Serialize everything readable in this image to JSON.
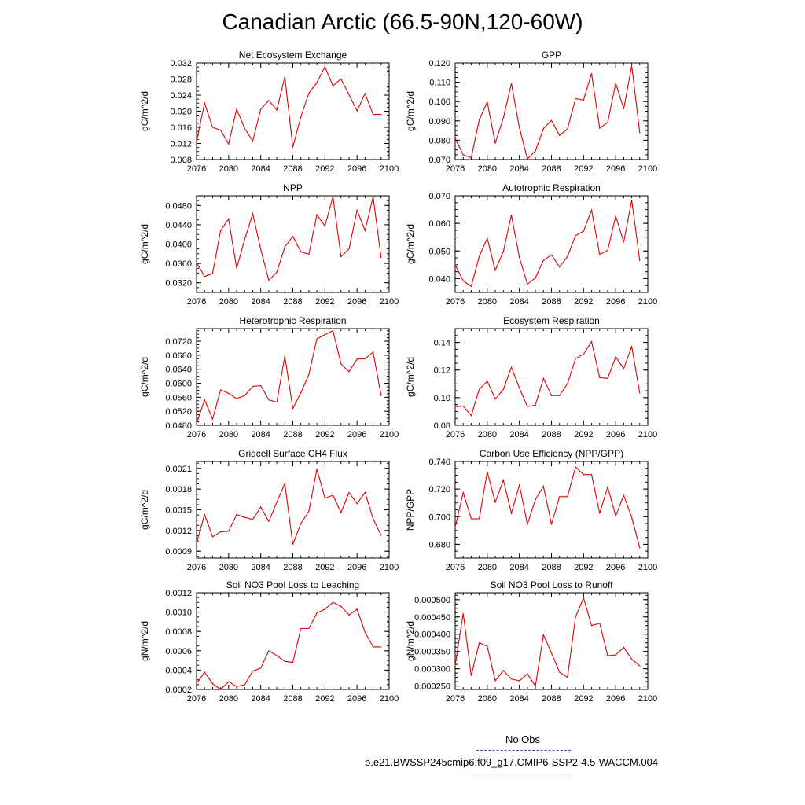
{
  "title": "Canadian Arctic (66.5-90N,120-60W)",
  "legend": {
    "obs_label": "No Obs",
    "run_label": "b.e21.BWSSP245cmip6.f09_g17.CMIP6-SSP2-4.5-WACCM.004",
    "run_color": "#e00000",
    "obs_color": "#4444cc"
  },
  "chart_data": [
    {
      "type": "line",
      "title": "Net Ecosystem Exchange",
      "ylabel": "gC/m^2/d",
      "xlim": [
        2076,
        2100
      ],
      "ylim": [
        0.008,
        0.032
      ],
      "x_ticks": [
        "2076",
        "2080",
        "2084",
        "2088",
        "2092",
        "2096",
        "2100"
      ],
      "y_ticks": [
        "0.008",
        "0.012",
        "0.016",
        "0.020",
        "0.024",
        "0.028",
        "0.032"
      ],
      "x": [
        2076,
        2077,
        2078,
        2079,
        2080,
        2081,
        2082,
        2083,
        2084,
        2085,
        2086,
        2087,
        2088,
        2089,
        2090,
        2091,
        2092,
        2093,
        2094,
        2095,
        2096,
        2097,
        2098,
        2099
      ],
      "values": [
        0.0125,
        0.022,
        0.016,
        0.0153,
        0.0119,
        0.0205,
        0.0157,
        0.0126,
        0.0205,
        0.0227,
        0.0203,
        0.0285,
        0.0111,
        0.0186,
        0.0245,
        0.0271,
        0.031,
        0.0263,
        0.028,
        0.0241,
        0.0201,
        0.0244,
        0.0192,
        0.0192
      ]
    },
    {
      "type": "line",
      "title": "GPP",
      "ylabel": "gC/m^2/d",
      "xlim": [
        2076,
        2100
      ],
      "ylim": [
        0.07,
        0.12
      ],
      "x_ticks": [
        "2076",
        "2080",
        "2084",
        "2088",
        "2092",
        "2096",
        "2100"
      ],
      "y_ticks": [
        "0.070",
        "0.080",
        "0.090",
        "0.100",
        "0.110",
        "0.120"
      ],
      "x": [
        2076,
        2077,
        2078,
        2079,
        2080,
        2081,
        2082,
        2083,
        2084,
        2085,
        2086,
        2087,
        2088,
        2089,
        2090,
        2091,
        2092,
        2093,
        2094,
        2095,
        2096,
        2097,
        2098,
        2099
      ],
      "values": [
        0.081,
        0.0725,
        0.071,
        0.0905,
        0.0998,
        0.0785,
        0.0915,
        0.1093,
        0.0865,
        0.0703,
        0.0745,
        0.086,
        0.0902,
        0.0825,
        0.0858,
        0.1015,
        0.1008,
        0.1145,
        0.0862,
        0.0892,
        0.1095,
        0.0962,
        0.1185,
        0.0838
      ]
    },
    {
      "type": "line",
      "title": "NPP",
      "ylabel": "gC/m^2/d",
      "xlim": [
        2076,
        2100
      ],
      "ylim": [
        0.03,
        0.05
      ],
      "x_ticks": [
        "2076",
        "2080",
        "2084",
        "2088",
        "2092",
        "2096",
        "2100"
      ],
      "y_ticks": [
        "0.0320",
        "0.0360",
        "0.0400",
        "0.0440",
        "0.0480"
      ],
      "x": [
        2076,
        2077,
        2078,
        2079,
        2080,
        2081,
        2082,
        2083,
        2084,
        2085,
        2086,
        2087,
        2088,
        2089,
        2090,
        2091,
        2092,
        2093,
        2094,
        2095,
        2096,
        2097,
        2098,
        2099
      ],
      "values": [
        0.0362,
        0.0333,
        0.0339,
        0.0428,
        0.0452,
        0.035,
        0.041,
        0.0463,
        0.0389,
        0.0325,
        0.0342,
        0.0394,
        0.0416,
        0.0384,
        0.0379,
        0.0461,
        0.0437,
        0.0498,
        0.0374,
        0.039,
        0.047,
        0.0428,
        0.0498,
        0.0372
      ]
    },
    {
      "type": "line",
      "title": "Autotrophic Respiration",
      "ylabel": "gC/m^2/d",
      "xlim": [
        2076,
        2100
      ],
      "ylim": [
        0.035,
        0.07
      ],
      "x_ticks": [
        "2076",
        "2080",
        "2084",
        "2088",
        "2092",
        "2096",
        "2100"
      ],
      "y_ticks": [
        "0.040",
        "0.050",
        "0.060",
        "0.070"
      ],
      "x": [
        2076,
        2077,
        2078,
        2079,
        2080,
        2081,
        2082,
        2083,
        2084,
        2085,
        2086,
        2087,
        2088,
        2089,
        2090,
        2091,
        2092,
        2093,
        2094,
        2095,
        2096,
        2097,
        2098,
        2099
      ],
      "values": [
        0.045,
        0.0392,
        0.0372,
        0.048,
        0.0546,
        0.043,
        0.0498,
        0.063,
        0.0477,
        0.038,
        0.0403,
        0.0466,
        0.0486,
        0.0442,
        0.048,
        0.0556,
        0.0572,
        0.0648,
        0.0488,
        0.0502,
        0.0626,
        0.0532,
        0.0684,
        0.0465
      ]
    },
    {
      "type": "line",
      "title": "Heterotrophic Respiration",
      "ylabel": "gC/m^2/d",
      "xlim": [
        2076,
        2100
      ],
      "ylim": [
        0.048,
        0.0756
      ],
      "x_ticks": [
        "2076",
        "2080",
        "2084",
        "2088",
        "2092",
        "2096",
        "2100"
      ],
      "y_ticks": [
        "0.0480",
        "0.0520",
        "0.0560",
        "0.0600",
        "0.0640",
        "0.0680",
        "0.0720"
      ],
      "x": [
        2076,
        2077,
        2078,
        2079,
        2080,
        2081,
        2082,
        2083,
        2084,
        2085,
        2086,
        2087,
        2088,
        2089,
        2090,
        2091,
        2092,
        2093,
        2094,
        2095,
        2096,
        2097,
        2098,
        2099
      ],
      "values": [
        0.0485,
        0.0553,
        0.0498,
        0.0581,
        0.0571,
        0.0556,
        0.0565,
        0.0591,
        0.0593,
        0.0553,
        0.0546,
        0.0678,
        0.0528,
        0.0573,
        0.0625,
        0.0727,
        0.0739,
        0.075,
        0.0655,
        0.0633,
        0.0669,
        0.067,
        0.0689,
        0.0565
      ]
    },
    {
      "type": "line",
      "title": "Ecosystem Respiration",
      "ylabel": "gC/m^2/d",
      "xlim": [
        2076,
        2100
      ],
      "ylim": [
        0.08,
        0.15
      ],
      "x_ticks": [
        "2076",
        "2080",
        "2084",
        "2088",
        "2092",
        "2096",
        "2100"
      ],
      "y_ticks": [
        "0.08",
        "0.10",
        "0.12",
        "0.14"
      ],
      "x": [
        2076,
        2077,
        2078,
        2079,
        2080,
        2081,
        2082,
        2083,
        2084,
        2085,
        2086,
        2087,
        2088,
        2089,
        2090,
        2091,
        2092,
        2093,
        2094,
        2095,
        2096,
        2097,
        2098,
        2099
      ],
      "values": [
        0.0935,
        0.094,
        0.087,
        0.106,
        0.112,
        0.099,
        0.106,
        0.122,
        0.107,
        0.0935,
        0.0946,
        0.114,
        0.1015,
        0.1015,
        0.1102,
        0.1283,
        0.1315,
        0.1405,
        0.1145,
        0.114,
        0.1295,
        0.121,
        0.137,
        0.1033
      ]
    },
    {
      "type": "line",
      "title": "Gridcell Surface CH4 Flux",
      "ylabel": "gC/m^2/d",
      "xlim": [
        2076,
        2100
      ],
      "ylim": [
        0.0008,
        0.0022
      ],
      "x_ticks": [
        "2076",
        "2080",
        "2084",
        "2088",
        "2092",
        "2096",
        "2100"
      ],
      "y_ticks": [
        "0.0009",
        "0.0012",
        "0.0015",
        "0.0018",
        "0.0021"
      ],
      "x": [
        2076,
        2077,
        2078,
        2079,
        2080,
        2081,
        2082,
        2083,
        2084,
        2085,
        2086,
        2087,
        2088,
        2089,
        2090,
        2091,
        2092,
        2093,
        2094,
        2095,
        2096,
        2097,
        2098,
        2099
      ],
      "values": [
        0.00102,
        0.00143,
        0.00111,
        0.00118,
        0.00119,
        0.00143,
        0.00139,
        0.00136,
        0.00154,
        0.00133,
        0.00161,
        0.00188,
        0.001,
        0.0013,
        0.00148,
        0.00209,
        0.00167,
        0.00171,
        0.00146,
        0.00175,
        0.00159,
        0.00175,
        0.00137,
        0.00113
      ]
    },
    {
      "type": "line",
      "title": "Carbon Use Efficiency (NPP/GPP)",
      "ylabel": "NPP/GPP",
      "xlim": [
        2076,
        2100
      ],
      "ylim": [
        0.67,
        0.74
      ],
      "x_ticks": [
        "2076",
        "2080",
        "2084",
        "2088",
        "2092",
        "2096",
        "2100"
      ],
      "y_ticks": [
        "0.680",
        "0.700",
        "0.720",
        "0.740"
      ],
      "x": [
        2076,
        2077,
        2078,
        2079,
        2080,
        2081,
        2082,
        2083,
        2084,
        2085,
        2086,
        2087,
        2088,
        2089,
        2090,
        2091,
        2092,
        2093,
        2094,
        2095,
        2096,
        2097,
        2098,
        2099
      ],
      "values": [
        0.6925,
        0.7175,
        0.6985,
        0.6985,
        0.7325,
        0.7105,
        0.7265,
        0.7025,
        0.723,
        0.6945,
        0.7125,
        0.722,
        0.6945,
        0.7145,
        0.7145,
        0.736,
        0.7305,
        0.7305,
        0.7025,
        0.7215,
        0.7005,
        0.7155,
        0.6995,
        0.6775
      ]
    },
    {
      "type": "line",
      "title": "Soil NO3 Pool Loss to Leaching",
      "ylabel": "gN/m^2/d",
      "xlim": [
        2076,
        2100
      ],
      "ylim": [
        0.0002,
        0.0012
      ],
      "x_ticks": [
        "2076",
        "2080",
        "2084",
        "2088",
        "2092",
        "2096",
        "2100"
      ],
      "y_ticks": [
        "0.0002",
        "0.0004",
        "0.0006",
        "0.0008",
        "0.0010",
        "0.0012"
      ],
      "x": [
        2076,
        2077,
        2078,
        2079,
        2080,
        2081,
        2082,
        2083,
        2084,
        2085,
        2086,
        2087,
        2088,
        2089,
        2090,
        2091,
        2092,
        2093,
        2094,
        2095,
        2096,
        2097,
        2098,
        2099
      ],
      "values": [
        0.00026,
        0.00038,
        0.00026,
        0.0002,
        0.00028,
        0.00023,
        0.00025,
        0.00039,
        0.00042,
        0.0006,
        0.00055,
        0.00049,
        0.00048,
        0.00083,
        0.00083,
        0.00099,
        0.00103,
        0.0011,
        0.00106,
        0.00097,
        0.00103,
        0.00079,
        0.00064,
        0.00064
      ]
    },
    {
      "type": "line",
      "title": "Soil NO3 Pool Loss to Runoff",
      "ylabel": "gN/m^2/d",
      "xlim": [
        2076,
        2100
      ],
      "ylim": [
        0.00024,
        0.00052
      ],
      "x_ticks": [
        "2076",
        "2080",
        "2084",
        "2088",
        "2092",
        "2096",
        "2100"
      ],
      "y_ticks": [
        "0.000250",
        "0.000300",
        "0.000350",
        "0.000400",
        "0.000450",
        "0.000500"
      ],
      "x": [
        2076,
        2077,
        2078,
        2079,
        2080,
        2081,
        2082,
        2083,
        2084,
        2085,
        2086,
        2087,
        2088,
        2089,
        2090,
        2091,
        2092,
        2093,
        2094,
        2095,
        2096,
        2097,
        2098,
        2099
      ],
      "values": [
        0.00031,
        0.00046,
        0.00028,
        0.000375,
        0.000365,
        0.000265,
        0.000295,
        0.00027,
        0.000265,
        0.000285,
        0.00025,
        0.000398,
        0.000345,
        0.00029,
        0.000275,
        0.00045,
        0.000505,
        0.000425,
        0.000432,
        0.000338,
        0.00034,
        0.000362,
        0.000328,
        0.000308
      ]
    }
  ]
}
